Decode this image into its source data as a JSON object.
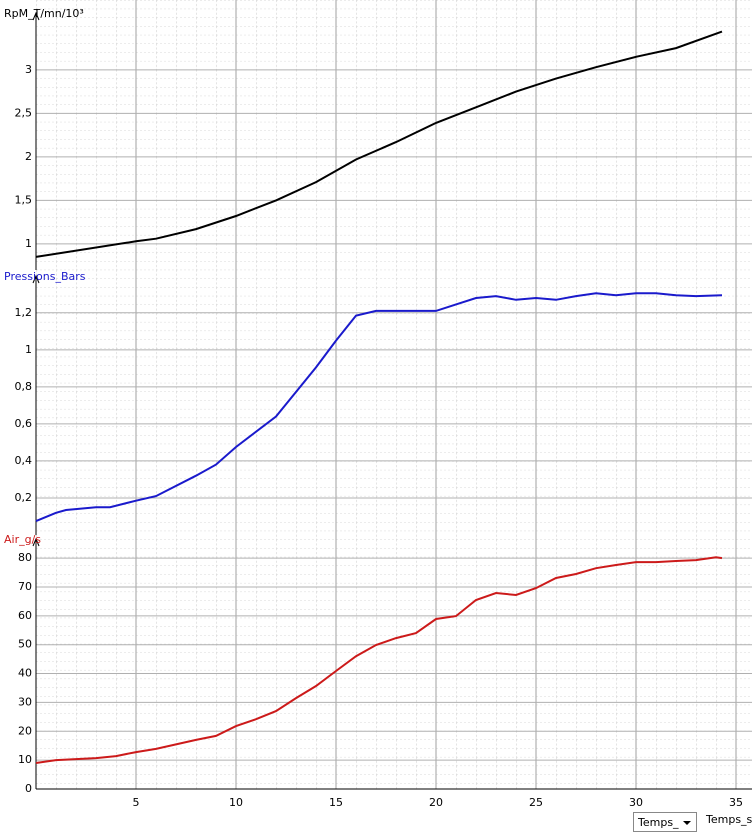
{
  "chart_data": [
    {
      "type": "line",
      "ylabel": "RpM_T/mn/10³",
      "xlim": [
        0,
        35.5
      ],
      "ylim": [
        0.7,
        3.55
      ],
      "yticks": [
        1,
        {
          "value": 1.5,
          "label": "1,5"
        },
        2,
        {
          "value": 2.5,
          "label": "2,5"
        },
        3
      ],
      "x": [
        0,
        5,
        6,
        8,
        10,
        12,
        14,
        16,
        18,
        20,
        22,
        24,
        26,
        28,
        30,
        32,
        34.3
      ],
      "series": [
        {
          "name": "RpM_T/mn/10³",
          "color": "#000000",
          "values": [
            0.85,
            1.03,
            1.06,
            1.17,
            1.32,
            1.5,
            1.71,
            1.97,
            2.17,
            2.39,
            2.57,
            2.75,
            2.9,
            3.03,
            3.15,
            3.25,
            3.44
          ]
        }
      ]
    },
    {
      "type": "line",
      "ylabel": "Pressions_Bars",
      "xlim": [
        0,
        35.5
      ],
      "ylim": [
        0,
        1.35
      ],
      "yticks": [
        {
          "value": 0.2,
          "label": "0,2"
        },
        {
          "value": 0.4,
          "label": "0,4"
        },
        {
          "value": 0.6,
          "label": "0,6"
        },
        {
          "value": 0.8,
          "label": "0,8"
        },
        1,
        {
          "value": 1.2,
          "label": "1,2"
        }
      ],
      "x": [
        0,
        1,
        1.5,
        3,
        3.7,
        5,
        6,
        8,
        9,
        10,
        12,
        14,
        15,
        16,
        17,
        20,
        21,
        22,
        23,
        24,
        25,
        26,
        27,
        28,
        29,
        30,
        31,
        32,
        33,
        34.3
      ],
      "series": [
        {
          "name": "Pressions_Bars",
          "color": "#1a1acc",
          "values": [
            0.075,
            0.12,
            0.135,
            0.15,
            0.15,
            0.185,
            0.21,
            0.32,
            0.38,
            0.475,
            0.64,
            0.905,
            1.05,
            1.185,
            1.21,
            1.21,
            1.245,
            1.28,
            1.29,
            1.27,
            1.28,
            1.27,
            1.29,
            1.305,
            1.295,
            1.305,
            1.305,
            1.295,
            1.29,
            1.295
          ]
        }
      ]
    },
    {
      "type": "line",
      "ylabel": "Air_g/s",
      "xlabel": "Temps_s",
      "xlim": [
        0,
        35.5
      ],
      "ylim": [
        0,
        83.5
      ],
      "xticks": [
        5,
        10,
        15,
        20,
        25,
        30,
        35
      ],
      "yticks": [
        0,
        10,
        20,
        30,
        40,
        50,
        60,
        70,
        80
      ],
      "x": [
        0,
        1,
        3,
        4,
        5,
        6,
        8,
        9,
        10,
        11,
        12,
        13,
        14,
        15,
        16,
        17,
        18,
        19,
        20,
        21,
        22,
        23,
        24,
        25,
        26,
        27,
        28,
        29,
        30,
        31,
        32,
        33,
        34,
        34.3
      ],
      "series": [
        {
          "name": "Air_g/s",
          "color": "#cc1a1a",
          "values": [
            9,
            10,
            10.7,
            11.4,
            12.8,
            13.9,
            17,
            18.4,
            21.8,
            24.2,
            27,
            31.5,
            35.7,
            40.9,
            46,
            49.9,
            52.3,
            54,
            58.9,
            59.9,
            65.5,
            67.9,
            67.2,
            69.6,
            73.1,
            74.5,
            76.5,
            77.6,
            78.6,
            78.6,
            79,
            79.3,
            80.3,
            80
          ]
        }
      ]
    }
  ],
  "controls": {
    "x_selector": "Temps_"
  }
}
